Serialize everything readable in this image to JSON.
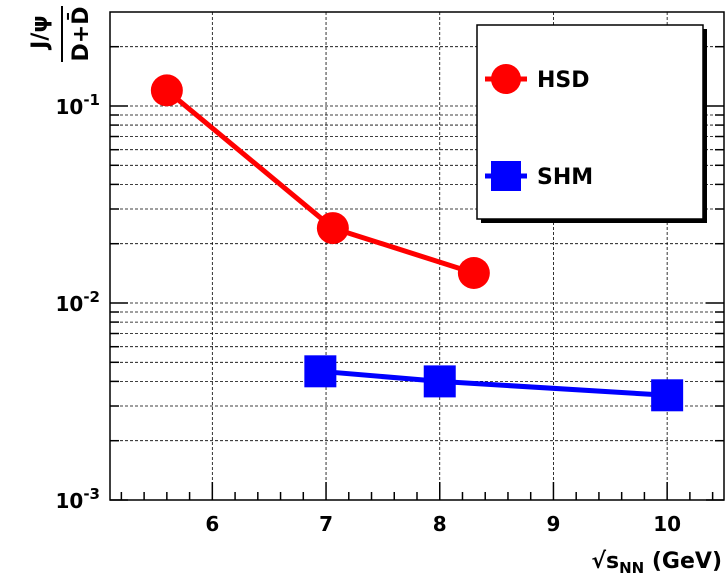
{
  "chart_data": {
    "type": "line",
    "title": "",
    "xlabel": {
      "root": "√",
      "main": "s",
      "sub": "NN",
      "unit": " (GeV)"
    },
    "ylabel": {
      "numerator": "J/ψ",
      "denominator": "D+D̄"
    },
    "x_scale": "linear",
    "y_scale": "log",
    "xlim": [
      5.1,
      10.5
    ],
    "ylim": [
      0.001,
      0.3
    ],
    "x_ticks": [
      6,
      7,
      8,
      9,
      10
    ],
    "x_tick_labels": [
      "6",
      "7",
      "8",
      "9",
      "10"
    ],
    "y_ticks": [
      {
        "value": 0.1,
        "base": "10",
        "exp": "-1"
      },
      {
        "value": 0.01,
        "base": "10",
        "exp": "-2"
      },
      {
        "value": 0.001,
        "base": "10",
        "exp": "-3"
      }
    ],
    "grid": true,
    "legend_position": "top-right",
    "series": [
      {
        "name": "HSD",
        "color": "#ff0000",
        "marker": "circle",
        "x": [
          5.6,
          7.06,
          8.3
        ],
        "y": [
          0.12,
          0.024,
          0.0142
        ]
      },
      {
        "name": "SHM",
        "color": "#0000ff",
        "marker": "square",
        "x": [
          6.95,
          8.0,
          10.0
        ],
        "y": [
          0.0045,
          0.004,
          0.0034
        ]
      }
    ]
  }
}
